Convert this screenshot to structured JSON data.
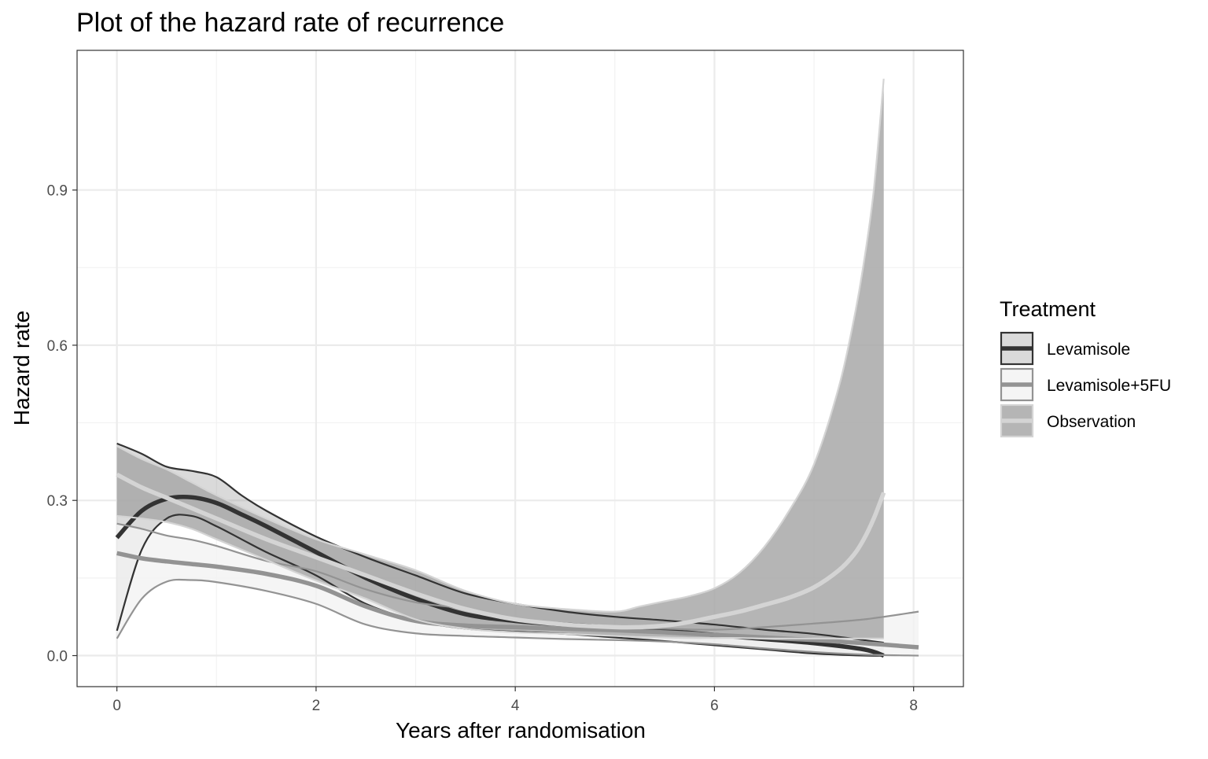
{
  "chart_data": {
    "type": "line",
    "title": "Plot of the hazard rate of recurrence",
    "xlabel": "Years after randomisation",
    "ylabel": "Hazard rate",
    "xlim": [
      -0.4,
      8.5
    ],
    "ylim": [
      -0.06,
      1.17
    ],
    "x_ticks": [
      0,
      2,
      4,
      6,
      8
    ],
    "x_tick_labels": [
      "0",
      "2",
      "4",
      "6",
      "8"
    ],
    "y_ticks": [
      0.0,
      0.3,
      0.6,
      0.9
    ],
    "y_tick_labels": [
      "0.0",
      "0.3",
      "0.6",
      "0.9"
    ],
    "grid": true,
    "legend": {
      "title": "Treatment",
      "position": "right",
      "entries": [
        "Levamisole",
        "Levamisole+5FU",
        "Observation"
      ]
    },
    "series": [
      {
        "name": "Levamisole",
        "color": "#333333",
        "fill": "#858585",
        "fill_opacity": 0.3,
        "x": [
          0,
          0.25,
          0.5,
          0.75,
          1,
          1.25,
          1.5,
          2,
          2.5,
          3,
          3.5,
          4,
          4.5,
          5,
          5.5,
          6,
          6.5,
          7,
          7.5,
          7.7
        ],
        "estimate": [
          0.228,
          0.28,
          0.303,
          0.306,
          0.295,
          0.273,
          0.25,
          0.2,
          0.15,
          0.11,
          0.08,
          0.067,
          0.06,
          0.054,
          0.048,
          0.04,
          0.032,
          0.024,
          0.012,
          0.0
        ],
        "upper": [
          0.41,
          0.39,
          0.365,
          0.357,
          0.345,
          0.31,
          0.28,
          0.23,
          0.19,
          0.155,
          0.12,
          0.1,
          0.085,
          0.075,
          0.068,
          0.06,
          0.05,
          0.042,
          0.03,
          0.025
        ],
        "lower": [
          0.048,
          0.205,
          0.265,
          0.27,
          0.25,
          0.225,
          0.2,
          0.155,
          0.1,
          0.068,
          0.052,
          0.046,
          0.042,
          0.035,
          0.028,
          0.02,
          0.012,
          0.004,
          0.0,
          0.0
        ]
      },
      {
        "name": "Levamisole+5FU",
        "color": "#939393",
        "fill": "#f3f3f3",
        "fill_opacity": 0.8,
        "x": [
          0,
          0.25,
          0.5,
          0.75,
          1,
          1.5,
          2,
          2.5,
          3,
          3.5,
          4,
          4.5,
          5,
          5.5,
          6,
          6.5,
          7,
          7.5,
          8.05
        ],
        "estimate": [
          0.198,
          0.188,
          0.182,
          0.177,
          0.172,
          0.158,
          0.135,
          0.095,
          0.067,
          0.058,
          0.055,
          0.052,
          0.049,
          0.045,
          0.04,
          0.035,
          0.03,
          0.024,
          0.016
        ],
        "upper": [
          0.255,
          0.245,
          0.232,
          0.224,
          0.212,
          0.183,
          0.163,
          0.128,
          0.103,
          0.09,
          0.07,
          0.06,
          0.055,
          0.052,
          0.05,
          0.055,
          0.062,
          0.07,
          0.085
        ],
        "lower": [
          0.033,
          0.11,
          0.143,
          0.146,
          0.142,
          0.125,
          0.1,
          0.06,
          0.043,
          0.038,
          0.035,
          0.032,
          0.03,
          0.027,
          0.022,
          0.014,
          0.007,
          0.002,
          0.0
        ]
      },
      {
        "name": "Observation",
        "color": "#d4d4d4",
        "fill": "#a8a8a8",
        "fill_opacity": 0.85,
        "x": [
          0,
          0.25,
          0.5,
          0.75,
          1,
          1.5,
          2,
          2.5,
          3,
          3.5,
          4,
          4.5,
          5,
          5.25,
          5.5,
          5.75,
          6,
          6.25,
          6.5,
          6.75,
          7,
          7.25,
          7.4,
          7.5,
          7.6,
          7.7
        ],
        "estimate": [
          0.35,
          0.325,
          0.305,
          0.285,
          0.265,
          0.225,
          0.19,
          0.155,
          0.12,
          0.09,
          0.07,
          0.06,
          0.055,
          0.055,
          0.058,
          0.065,
          0.075,
          0.085,
          0.098,
          0.112,
          0.132,
          0.165,
          0.195,
          0.225,
          0.265,
          0.315
        ],
        "upper": [
          0.405,
          0.38,
          0.36,
          0.335,
          0.31,
          0.265,
          0.225,
          0.195,
          0.165,
          0.125,
          0.1,
          0.09,
          0.085,
          0.095,
          0.105,
          0.115,
          0.13,
          0.16,
          0.21,
          0.28,
          0.37,
          0.52,
          0.65,
          0.76,
          0.9,
          1.115
        ],
        "lower": [
          0.27,
          0.265,
          0.258,
          0.245,
          0.225,
          0.185,
          0.145,
          0.11,
          0.07,
          0.052,
          0.045,
          0.042,
          0.038,
          0.036,
          0.035,
          0.034,
          0.034,
          0.034,
          0.033,
          0.033,
          0.033,
          0.033,
          0.033,
          0.033,
          0.033,
          0.033
        ]
      }
    ]
  }
}
